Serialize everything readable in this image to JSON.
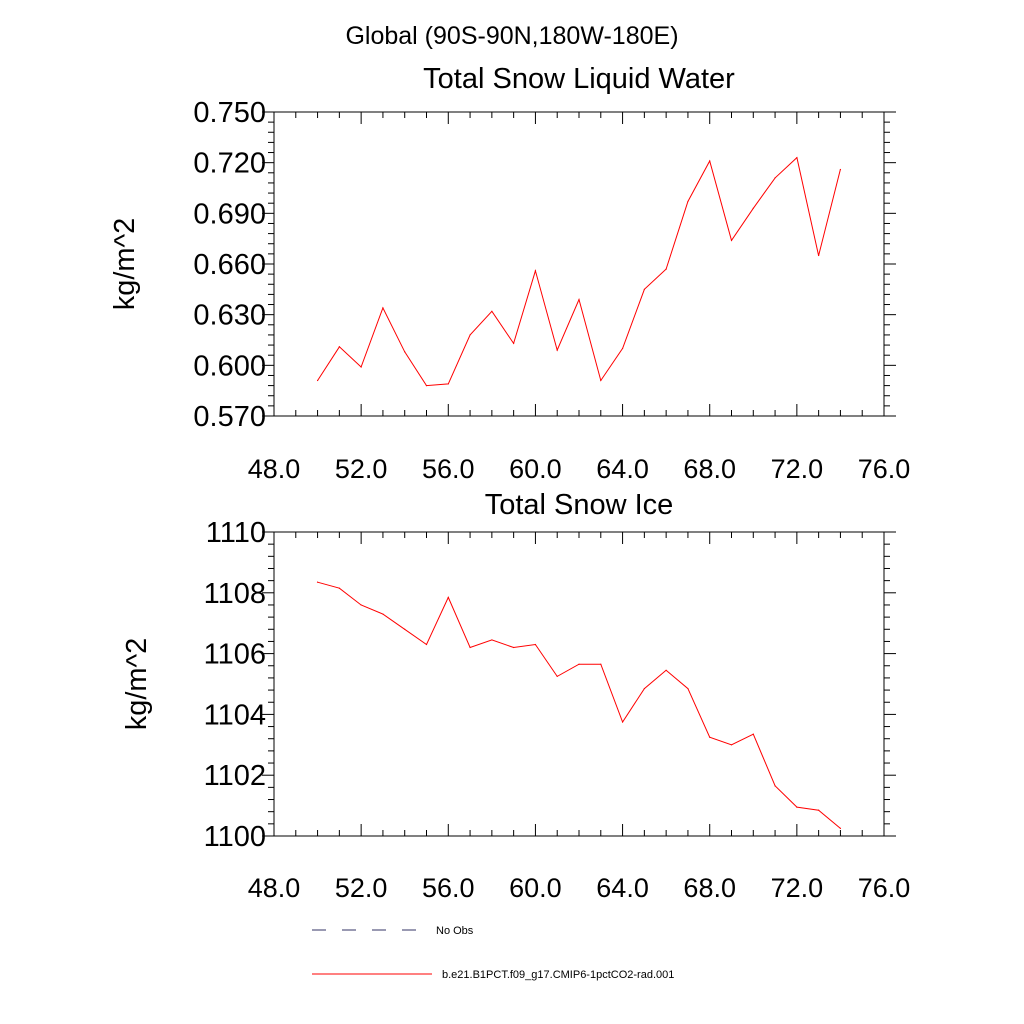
{
  "figure": {
    "region_title": "Global (90S-90N,180W-180E)"
  },
  "legend": {
    "items": [
      {
        "label": "No Obs",
        "style": "dashed",
        "color": "#333366"
      },
      {
        "label": "b.e21.B1PCT.f09_g17.CMIP6-1pctCO2-rad.001",
        "style": "solid",
        "color": "#ff0000"
      }
    ]
  },
  "chart_data": [
    {
      "type": "line",
      "title": "Total Snow Liquid Water",
      "xlabel": "",
      "ylabel": "kg/m^2",
      "xlim": [
        48,
        76
      ],
      "ylim": [
        0.57,
        0.75
      ],
      "xticks": [
        48,
        52,
        56,
        60,
        64,
        68,
        72,
        76
      ],
      "xtick_labels": [
        "48.0",
        "52.0",
        "56.0",
        "60.0",
        "64.0",
        "68.0",
        "72.0",
        "76.0"
      ],
      "yticks": [
        0.57,
        0.6,
        0.63,
        0.66,
        0.69,
        0.72,
        0.75
      ],
      "ytick_labels": [
        "0.570",
        "0.600",
        "0.630",
        "0.660",
        "0.690",
        "0.720",
        "0.750"
      ],
      "grid": false,
      "series": [
        {
          "name": "b.e21.B1PCT.f09_g17.CMIP6-1pctCO2-rad.001",
          "color": "#ff0000",
          "x": [
            50,
            51,
            52,
            53,
            54,
            55,
            56,
            57,
            58,
            59,
            60,
            61,
            62,
            63,
            64,
            65,
            66,
            67,
            68,
            69,
            70,
            71,
            72,
            73,
            74
          ],
          "values": [
            0.591,
            0.611,
            0.599,
            0.634,
            0.608,
            0.588,
            0.589,
            0.618,
            0.632,
            0.613,
            0.656,
            0.609,
            0.639,
            0.591,
            0.61,
            0.645,
            0.657,
            0.697,
            0.721,
            0.674,
            0.693,
            0.711,
            0.723,
            0.665,
            0.716
          ]
        }
      ]
    },
    {
      "type": "line",
      "title": "Total Snow Ice",
      "xlabel": "",
      "ylabel": "kg/m^2",
      "xlim": [
        48,
        76
      ],
      "ylim": [
        1100,
        1110
      ],
      "xticks": [
        48,
        52,
        56,
        60,
        64,
        68,
        72,
        76
      ],
      "xtick_labels": [
        "48.0",
        "52.0",
        "56.0",
        "60.0",
        "64.0",
        "68.0",
        "72.0",
        "76.0"
      ],
      "yticks": [
        1100,
        1102,
        1104,
        1106,
        1108,
        1110
      ],
      "ytick_labels": [
        "1100",
        "1102",
        "1104",
        "1106",
        "1108",
        "1110"
      ],
      "grid": false,
      "series": [
        {
          "name": "b.e21.B1PCT.f09_g17.CMIP6-1pctCO2-rad.001",
          "color": "#ff0000",
          "x": [
            50,
            51,
            52,
            53,
            54,
            55,
            56,
            57,
            58,
            59,
            60,
            61,
            62,
            63,
            64,
            65,
            66,
            67,
            68,
            69,
            70,
            71,
            72,
            73,
            74
          ],
          "values": [
            1108.35,
            1108.15,
            1107.6,
            1107.3,
            1106.8,
            1106.3,
            1107.85,
            1106.2,
            1106.45,
            1106.2,
            1106.3,
            1105.25,
            1105.65,
            1105.65,
            1103.75,
            1104.85,
            1105.45,
            1104.85,
            1103.25,
            1103.0,
            1103.35,
            1101.65,
            1100.95,
            1100.85,
            1100.25
          ]
        }
      ]
    }
  ]
}
